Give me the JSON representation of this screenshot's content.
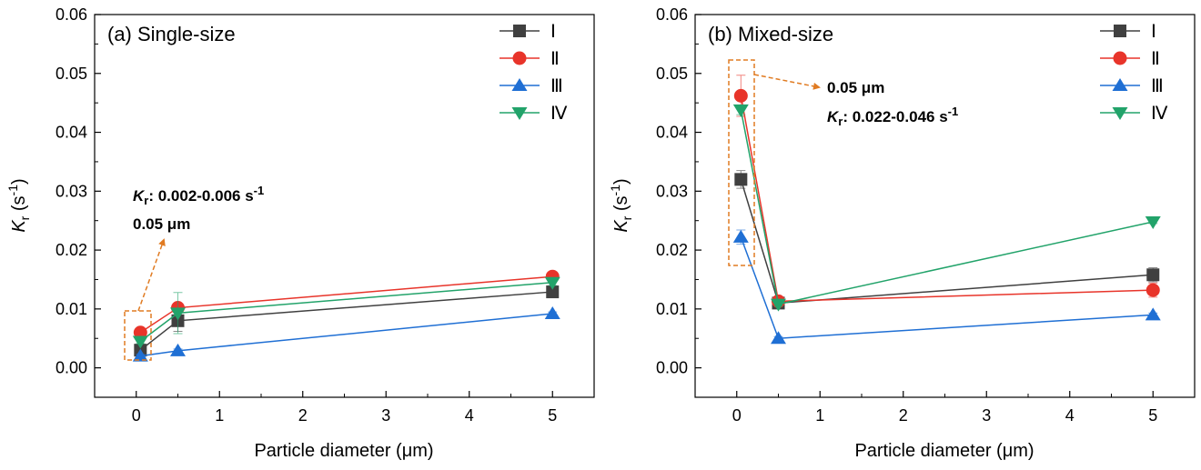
{
  "chart_data": [
    {
      "type": "line",
      "title": "(a) Single-size",
      "xlabel": "Particle diameter (μm)",
      "ylabel_main": "K",
      "ylabel_sub": "r",
      "ylabel_unit": " (s",
      "ylabel_sup": "-1",
      "ylabel_close": ")",
      "xlim": [
        -0.5,
        5.5
      ],
      "ylim": [
        -0.005,
        0.06
      ],
      "xticks": [
        0,
        1,
        2,
        3,
        4,
        5
      ],
      "yticks": [
        "0.00",
        "0.01",
        "0.02",
        "0.03",
        "0.04",
        "0.05",
        "0.06"
      ],
      "x": [
        0.05,
        0.5,
        5
      ],
      "series": [
        {
          "name": "Ⅰ",
          "color": "#404040",
          "marker": "square",
          "values": [
            0.003,
            0.008,
            0.0129
          ],
          "errors": [
            0.0006,
            0.0018,
            0.0004
          ]
        },
        {
          "name": "Ⅱ",
          "color": "#e8342a",
          "marker": "circle",
          "values": [
            0.006,
            0.0102,
            0.0155
          ],
          "errors": [
            0.0004,
            0.0006,
            0.0008
          ]
        },
        {
          "name": "Ⅲ",
          "color": "#1f6fd4",
          "marker": "triangle-up",
          "values": [
            0.002,
            0.0029,
            0.0092
          ],
          "errors": [
            0.0003,
            0.0003,
            0.0003
          ]
        },
        {
          "name": "Ⅳ",
          "color": "#22a36a",
          "marker": "triangle-down",
          "values": [
            0.0045,
            0.0093,
            0.0145
          ],
          "errors": [
            0.0004,
            0.0035,
            0.0005
          ]
        }
      ],
      "annotations": {
        "kr_prefix": "K",
        "kr_sub": "r",
        "kr_text": ": 0.002-0.006 s",
        "kr_sup": "-1",
        "size": "0.05 μm"
      }
    },
    {
      "type": "line",
      "title": "(b) Mixed-size",
      "xlabel": "Particle diameter (μm)",
      "ylabel_main": "K",
      "ylabel_sub": "r",
      "ylabel_unit": " (s",
      "ylabel_sup": "-1",
      "ylabel_close": ")",
      "xlim": [
        -0.5,
        5.5
      ],
      "ylim": [
        -0.005,
        0.06
      ],
      "xticks": [
        0,
        1,
        2,
        3,
        4,
        5
      ],
      "yticks": [
        "0.00",
        "0.01",
        "0.02",
        "0.03",
        "0.04",
        "0.05",
        "0.06"
      ],
      "x": [
        0.05,
        0.5,
        5
      ],
      "series": [
        {
          "name": "Ⅰ",
          "color": "#404040",
          "marker": "square",
          "values": [
            0.032,
            0.011,
            0.0158
          ],
          "errors": [
            0.0015,
            0.0004,
            0.0012
          ]
        },
        {
          "name": "Ⅱ",
          "color": "#e8342a",
          "marker": "circle",
          "values": [
            0.0462,
            0.0113,
            0.0132
          ],
          "errors": [
            0.0035,
            0.0004,
            0.0012
          ]
        },
        {
          "name": "Ⅲ",
          "color": "#1f6fd4",
          "marker": "triangle-up",
          "values": [
            0.0222,
            0.005,
            0.009
          ],
          "errors": [
            0.0012,
            0.0003,
            0.0003
          ]
        },
        {
          "name": "Ⅳ",
          "color": "#22a36a",
          "marker": "triangle-down",
          "values": [
            0.0438,
            0.0108,
            0.0248
          ],
          "errors": [
            0.0008,
            0.0003,
            0.0003
          ]
        }
      ],
      "annotations": {
        "kr_prefix": "K",
        "kr_sub": "r",
        "kr_text": ": 0.022-0.046 s",
        "kr_sup": "-1",
        "size": "0.05 μm"
      }
    }
  ]
}
